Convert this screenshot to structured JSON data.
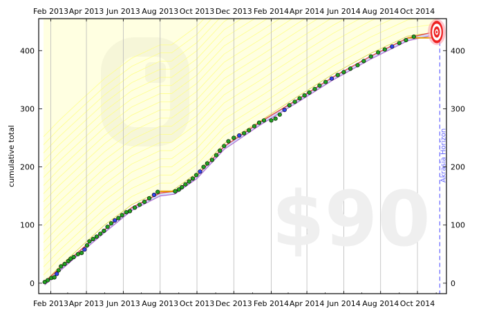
{
  "chart_data": {
    "type": "line",
    "ylabel": "cumulative total",
    "x_ticks": [
      "Feb 2013",
      "Apr 2013",
      "Jun 2013",
      "Aug 2013",
      "Oct 2013",
      "Dec 2013",
      "Feb 2014",
      "Apr 2014",
      "Jun 2014",
      "Aug 2014",
      "Oct 2014"
    ],
    "y_ticks": [
      0,
      100,
      200,
      300,
      400
    ],
    "ylim": [
      -18,
      455
    ],
    "xlim": [
      "2013-01-12",
      "2014-11-18"
    ],
    "grid": "vertical",
    "watermark_amount": "$90",
    "akrasia_label": "Akrasia Horizon",
    "akrasia_date": "2014-11-07",
    "goal": {
      "date": "2014-11-02",
      "value": 432
    },
    "colors": {
      "dot_fill": "#22a022",
      "dot_fill_alt": "#3344ee",
      "dot_edge": "#000000",
      "trend_line": "#e05050",
      "yellow_road": "#ffff66",
      "road_guides": "#ffff99",
      "akrasia_line": "#6666ff",
      "orange_segment": "#e69a00",
      "grid": "#b8b8b8",
      "watermark": "#f0f0f0"
    },
    "road": [
      [
        "2013-01-20",
        0
      ],
      [
        "2013-02-15",
        28
      ],
      [
        "2013-03-20",
        60
      ],
      [
        "2013-05-01",
        100
      ],
      [
        "2013-06-15",
        135
      ],
      [
        "2013-08-01",
        158
      ],
      [
        "2013-08-20",
        158
      ],
      [
        "2013-10-01",
        190
      ],
      [
        "2013-11-15",
        240
      ],
      [
        "2014-01-15",
        280
      ],
      [
        "2014-03-15",
        320
      ],
      [
        "2014-05-15",
        360
      ],
      [
        "2014-07-15",
        395
      ],
      [
        "2014-09-15",
        425
      ],
      [
        "2014-11-02",
        432
      ]
    ],
    "trend": [
      [
        "2013-01-22",
        2
      ],
      [
        "2013-02-15",
        25
      ],
      [
        "2013-03-20",
        55
      ],
      [
        "2013-05-01",
        92
      ],
      [
        "2013-06-15",
        130
      ],
      [
        "2013-08-01",
        155
      ],
      [
        "2013-08-25",
        158
      ],
      [
        "2013-10-01",
        185
      ],
      [
        "2013-11-15",
        235
      ],
      [
        "2014-01-15",
        278
      ],
      [
        "2014-03-15",
        315
      ],
      [
        "2014-05-15",
        355
      ],
      [
        "2014-07-15",
        390
      ],
      [
        "2014-09-15",
        422
      ],
      [
        "2014-10-20",
        430
      ]
    ],
    "orange_segments": [
      [
        [
          "2013-08-01",
          158
        ],
        [
          "2013-08-25",
          158
        ]
      ],
      [
        [
          "2014-09-15",
          422
        ],
        [
          "2014-10-30",
          422
        ]
      ]
    ],
    "points": [
      [
        "2013-01-22",
        2
      ],
      [
        "2013-01-27",
        5
      ],
      [
        "2013-02-02",
        9
      ],
      [
        "2013-02-07",
        10
      ],
      [
        "2013-02-11",
        16
      ],
      [
        "2013-02-14",
        22
      ],
      [
        "2013-02-18",
        29
      ],
      [
        "2013-02-24",
        33
      ],
      [
        "2013-03-02",
        38
      ],
      [
        "2013-03-06",
        42
      ],
      [
        "2013-03-11",
        45
      ],
      [
        "2013-03-18",
        50
      ],
      [
        "2013-03-24",
        52
      ],
      [
        "2013-03-29",
        58
      ],
      [
        "2013-04-02",
        65
      ],
      [
        "2013-04-06",
        72
      ],
      [
        "2013-04-12",
        76
      ],
      [
        "2013-04-18",
        80
      ],
      [
        "2013-04-24",
        85
      ],
      [
        "2013-04-30",
        90
      ],
      [
        "2013-05-06",
        97
      ],
      [
        "2013-05-12",
        103
      ],
      [
        "2013-05-18",
        108
      ],
      [
        "2013-05-24",
        112
      ],
      [
        "2013-05-30",
        117
      ],
      [
        "2013-06-06",
        122
      ],
      [
        "2013-06-12",
        124
      ],
      [
        "2013-06-20",
        130
      ],
      [
        "2013-06-28",
        135
      ],
      [
        "2013-07-06",
        140
      ],
      [
        "2013-07-14",
        146
      ],
      [
        "2013-07-22",
        152
      ],
      [
        "2013-07-28",
        157
      ],
      [
        "2013-08-26",
        158
      ],
      [
        "2013-09-01",
        161
      ],
      [
        "2013-09-06",
        165
      ],
      [
        "2013-09-12",
        170
      ],
      [
        "2013-09-18",
        175
      ],
      [
        "2013-09-24",
        180
      ],
      [
        "2013-09-30",
        186
      ],
      [
        "2013-10-06",
        192
      ],
      [
        "2013-10-12",
        200
      ],
      [
        "2013-10-18",
        206
      ],
      [
        "2013-10-26",
        212
      ],
      [
        "2013-11-02",
        220
      ],
      [
        "2013-11-08",
        228
      ],
      [
        "2013-11-15",
        236
      ],
      [
        "2013-11-22",
        244
      ],
      [
        "2013-12-01",
        250
      ],
      [
        "2013-12-10",
        254
      ],
      [
        "2013-12-18",
        258
      ],
      [
        "2013-12-26",
        263
      ],
      [
        "2014-01-04",
        270
      ],
      [
        "2014-01-12",
        276
      ],
      [
        "2014-01-20",
        280
      ],
      [
        "2014-02-01",
        280
      ],
      [
        "2014-02-08",
        283
      ],
      [
        "2014-02-15",
        290
      ],
      [
        "2014-02-23",
        298
      ],
      [
        "2014-03-03",
        306
      ],
      [
        "2014-03-12",
        312
      ],
      [
        "2014-03-20",
        318
      ],
      [
        "2014-03-28",
        323
      ],
      [
        "2014-04-05",
        328
      ],
      [
        "2014-04-14",
        334
      ],
      [
        "2014-04-22",
        340
      ],
      [
        "2014-05-02",
        346
      ],
      [
        "2014-05-12",
        352
      ],
      [
        "2014-05-22",
        358
      ],
      [
        "2014-06-01",
        363
      ],
      [
        "2014-06-12",
        369
      ],
      [
        "2014-06-24",
        375
      ],
      [
        "2014-07-04",
        382
      ],
      [
        "2014-07-16",
        390
      ],
      [
        "2014-07-28",
        397
      ],
      [
        "2014-08-08",
        402
      ],
      [
        "2014-08-20",
        407
      ],
      [
        "2014-09-01",
        413
      ],
      [
        "2014-09-12",
        418
      ],
      [
        "2014-09-25",
        424
      ]
    ]
  }
}
